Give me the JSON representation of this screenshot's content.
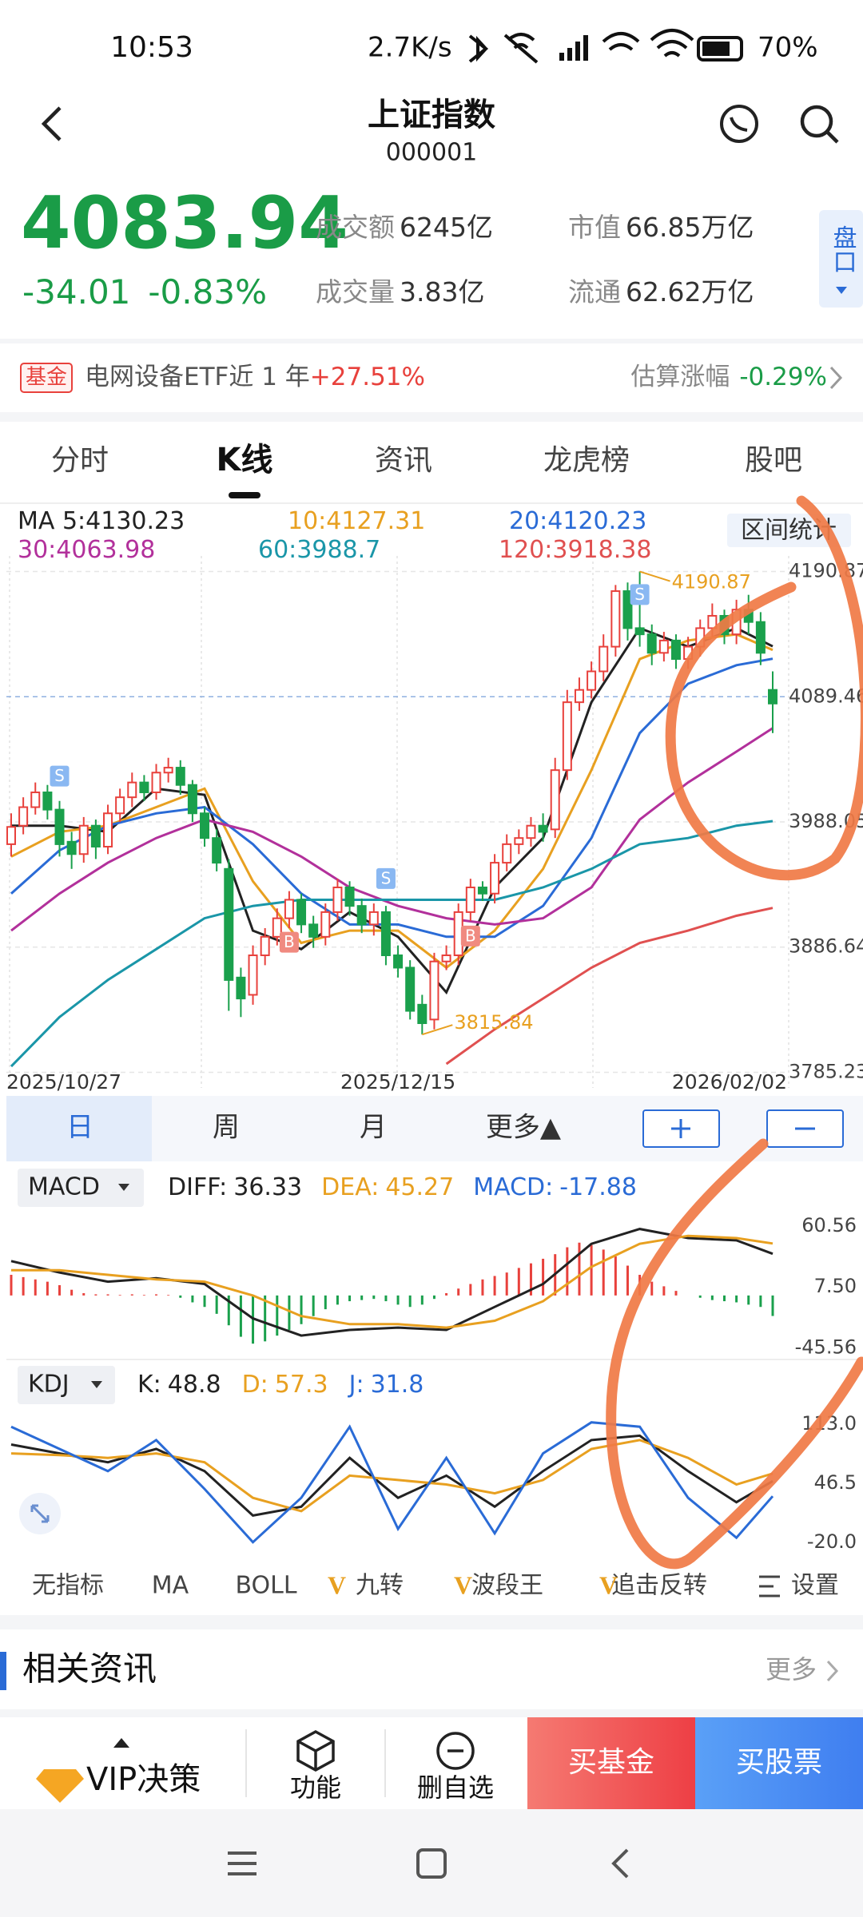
{
  "status_bar": {
    "time": "10:53",
    "net": "2.7K/s",
    "battery": "70%"
  },
  "header": {
    "title": "上证指数",
    "code": "000001"
  },
  "quote": {
    "price": "4083.94",
    "change": "-34.01",
    "change_pct": "-0.83%",
    "stats": [
      {
        "label": "成交额",
        "value": "6245亿"
      },
      {
        "label": "市值",
        "value": "66.85万亿"
      },
      {
        "label": "成交量",
        "value": "3.83亿"
      },
      {
        "label": "流通",
        "value": "62.62万亿"
      }
    ],
    "side_tab": "盘口"
  },
  "fund_banner": {
    "tag": "基金",
    "text": "电网设备ETF近 1 年",
    "return": "+27.51%",
    "est_label": "估算涨幅",
    "est_value": "-0.29%"
  },
  "tabs": [
    "分时",
    "K线",
    "资讯",
    "龙虎榜",
    "股吧"
  ],
  "range_stat": "区间统计",
  "periods": [
    "日",
    "周",
    "月",
    "更多▲"
  ],
  "indicators": [
    "无指标",
    "MA",
    "BOLL",
    "九转",
    "波段王",
    "追击反转",
    "设置"
  ],
  "news": {
    "title": "相关资讯",
    "more": "更多"
  },
  "bottom_bar": {
    "vip": "VIP决策",
    "buttons": [
      "功能",
      "删自选"
    ],
    "buy_fund": "买基金",
    "buy_stock": "买股票"
  },
  "chart_data": [
    {
      "type": "candlestick",
      "categories": [
        "2025/10/27",
        null,
        null,
        null,
        null,
        null,
        null,
        null,
        null,
        null,
        null,
        null,
        null,
        null,
        null,
        null,
        null,
        null,
        null,
        null,
        null,
        null,
        null,
        null,
        null,
        null,
        null,
        null,
        null,
        null,
        null,
        null,
        "2025/12/15",
        null,
        null,
        null,
        null,
        null,
        null,
        null,
        null,
        null,
        null,
        null,
        null,
        null,
        null,
        null,
        null,
        null,
        null,
        null,
        null,
        null,
        null,
        null,
        null,
        null,
        null,
        null,
        null,
        null,
        null,
        "2026/02/02"
      ],
      "open": [
        3970,
        3985,
        4000,
        4012,
        3998,
        3972,
        3962,
        3985,
        3968,
        3995,
        4008,
        4020,
        4012,
        4028,
        4032,
        4018,
        3995,
        3975,
        3950,
        3862,
        3848,
        3880,
        3895,
        3910,
        3925,
        3905,
        3895,
        3915,
        3935,
        3920,
        3905,
        3915,
        3880,
        3870,
        3840,
        3828,
        3875,
        3880,
        3915,
        3935,
        3930,
        3955,
        3970,
        3975,
        3985,
        3982,
        4030,
        4085,
        4095,
        4110,
        4130,
        4175,
        4145,
        4140,
        4125,
        4135,
        4120,
        4130,
        4145,
        4155,
        4140,
        4160,
        4150,
        4095
      ],
      "close": [
        3984,
        4000,
        4012,
        3998,
        3970,
        3962,
        3985,
        3968,
        3995,
        4008,
        4020,
        4012,
        4028,
        4032,
        4018,
        3995,
        3975,
        3955,
        3860,
        3845,
        3880,
        3895,
        3910,
        3925,
        3905,
        3895,
        3915,
        3935,
        3920,
        3905,
        3915,
        3880,
        3870,
        3835,
        3825,
        3875,
        3880,
        3915,
        3935,
        3930,
        3955,
        3970,
        3975,
        3985,
        3980,
        4030,
        4085,
        4095,
        4110,
        4130,
        4175,
        4145,
        4140,
        4125,
        4135,
        4120,
        4130,
        4145,
        4155,
        4140,
        4160,
        4150,
        4125,
        4083.94
      ],
      "high": [
        3995,
        4008,
        4020,
        4018,
        4005,
        3980,
        3992,
        3990,
        4002,
        4015,
        4028,
        4026,
        4035,
        4040,
        4038,
        4022,
        4000,
        3982,
        3958,
        3870,
        3888,
        3902,
        3918,
        3932,
        3930,
        3912,
        3922,
        3942,
        3940,
        3926,
        3922,
        3920,
        3888,
        3876,
        3848,
        3882,
        3888,
        3922,
        3942,
        3940,
        3962,
        3978,
        3982,
        3992,
        3995,
        4040,
        4095,
        4105,
        4118,
        4140,
        4180,
        4182,
        4190.87,
        4148,
        4142,
        4140,
        4138,
        4152,
        4165,
        4160,
        4168,
        4172,
        4158,
        4110
      ],
      "low": [
        3960,
        3978,
        3994,
        3990,
        3960,
        3950,
        3955,
        3958,
        3962,
        3988,
        4000,
        4005,
        4006,
        4020,
        4010,
        3988,
        3968,
        3948,
        3835,
        3830,
        3840,
        3872,
        3888,
        3902,
        3898,
        3886,
        3888,
        3908,
        3912,
        3898,
        3896,
        3872,
        3862,
        3828,
        3815.84,
        3820,
        3868,
        3872,
        3908,
        3924,
        3922,
        3948,
        3962,
        3968,
        3972,
        3975,
        4022,
        4078,
        4088,
        4102,
        4122,
        4135,
        4130,
        4115,
        4118,
        4112,
        4112,
        4122,
        4138,
        4132,
        4132,
        4140,
        4115,
        4060
      ],
      "up_color": "#e8413c",
      "down_color": "#1aa04c",
      "signals": [
        {
          "label": "S",
          "at": 4
        },
        {
          "label": "B",
          "at": 23
        },
        {
          "label": "S",
          "at": 31
        },
        {
          "label": "B",
          "at": 38
        },
        {
          "label": "S",
          "at": 52
        }
      ],
      "x": [
        0,
        4,
        8,
        12,
        16,
        20,
        24,
        28,
        32,
        36,
        40,
        44,
        48,
        52,
        56,
        60,
        63
      ],
      "series": [
        {
          "name": "MA 5:",
          "color": "#222222",
          "values": [
            3985,
            3985,
            3980,
            4015,
            4010,
            3900,
            3885,
            3915,
            3895,
            3850,
            3935,
            3975,
            4085,
            4145,
            4130,
            4145,
            4130.23
          ]
        },
        {
          "name": "10:",
          "color": "#e8a020",
          "values": [
            3960,
            3980,
            3985,
            4000,
            4015,
            3940,
            3890,
            3900,
            3900,
            3870,
            3900,
            3950,
            4030,
            4120,
            4135,
            4140,
            4127.31
          ]
        },
        {
          "name": "20:",
          "color": "#2a6bd6",
          "values": [
            3930,
            3965,
            3985,
            3995,
            4000,
            3970,
            3930,
            3905,
            3905,
            3895,
            3895,
            3920,
            3975,
            4060,
            4100,
            4115,
            4120.23
          ]
        },
        {
          "name": "30:",
          "color": "#b2309b",
          "values": [
            3900,
            3930,
            3955,
            3975,
            3990,
            3980,
            3960,
            3935,
            3920,
            3910,
            3905,
            3910,
            3935,
            3990,
            4020,
            4045,
            4063.98
          ]
        },
        {
          "name": "60:",
          "color": "#1a96a8",
          "values": [
            3790,
            3830,
            3860,
            3885,
            3910,
            3920,
            3925,
            3925,
            3925,
            3925,
            3925,
            3935,
            3950,
            3970,
            3975,
            3985,
            3988.7
          ]
        },
        {
          "name": "120:",
          "color": "#e05050",
          "values": [
            null,
            null,
            null,
            null,
            null,
            null,
            null,
            null,
            null,
            3792,
            3820,
            3845,
            3870,
            3890,
            3900,
            3912,
            3918.38
          ]
        }
      ],
      "ylim": [
        3772.6,
        4203.5
      ],
      "yticks": [
        4190.87,
        4089.46,
        3988.05,
        3886.64,
        3785.23
      ]
    },
    {
      "type": "macd",
      "indicator": "MACD",
      "x": [
        0,
        4,
        8,
        12,
        16,
        20,
        24,
        28,
        32,
        36,
        40,
        44,
        48,
        52,
        56,
        60,
        63
      ],
      "series": [
        {
          "name": "DIFF:",
          "color": "#222222",
          "values": [
            30,
            20,
            12,
            15,
            10,
            -20,
            -35,
            -30,
            -28,
            -30,
            -10,
            10,
            45,
            58,
            50,
            48,
            36.33
          ]
        },
        {
          "name": "DEA:",
          "color": "#e8a020",
          "values": [
            22,
            22,
            18,
            14,
            12,
            0,
            -18,
            -25,
            -25,
            -28,
            -22,
            -5,
            25,
            45,
            52,
            50,
            45.27
          ]
        }
      ],
      "histogram": {
        "name": "MACD:",
        "color": "#2a6bd6",
        "values": [
          18,
          16,
          14,
          12,
          9,
          5,
          2,
          1,
          1,
          0.5,
          1,
          0.5,
          1,
          0.5,
          -2,
          -6,
          -10,
          -16,
          -26,
          -36,
          -42,
          -40,
          -35,
          -30,
          -25,
          -18,
          -12,
          -8,
          -5,
          -4,
          -3,
          -5,
          -8,
          -10,
          -8,
          -3,
          2,
          6,
          10,
          14,
          17,
          20,
          24,
          28,
          32,
          36,
          42,
          46,
          44,
          40,
          34,
          26,
          18,
          12,
          8,
          4,
          0,
          -2,
          -4,
          -5,
          -6,
          -8,
          -10,
          -17.88
        ]
      },
      "ylim": [
        -53,
        74.4
      ],
      "yticks": [
        60.56,
        {
          "value": 7.5,
          "label": "7.50"
        },
        -45.56
      ]
    },
    {
      "type": "kdj",
      "indicator": "KDJ",
      "x": [
        0,
        4,
        8,
        12,
        16,
        20,
        24,
        28,
        32,
        36,
        40,
        44,
        48,
        52,
        56,
        60,
        63
      ],
      "series": [
        {
          "name": "K:",
          "color": "#222222",
          "values": [
            90,
            80,
            70,
            85,
            60,
            10,
            20,
            75,
            30,
            55,
            20,
            60,
            95,
            100,
            60,
            25,
            48.8
          ]
        },
        {
          "name": "D:",
          "color": "#e8a020",
          "values": [
            80,
            78,
            75,
            80,
            70,
            30,
            15,
            55,
            50,
            45,
            35,
            50,
            85,
            95,
            75,
            45,
            57.3
          ]
        },
        {
          "name": "J:",
          "color": "#2a6bd6",
          "values": [
            110,
            85,
            60,
            95,
            40,
            -20,
            30,
            110,
            -5,
            75,
            -10,
            80,
            115,
            110,
            30,
            -15,
            31.8
          ]
        }
      ],
      "ylim": [
        -31,
        133.6
      ],
      "yticks": [
        {
          "value": 113,
          "label": "113.0"
        },
        46.5,
        {
          "value": -20,
          "label": "-20.0"
        }
      ]
    }
  ]
}
